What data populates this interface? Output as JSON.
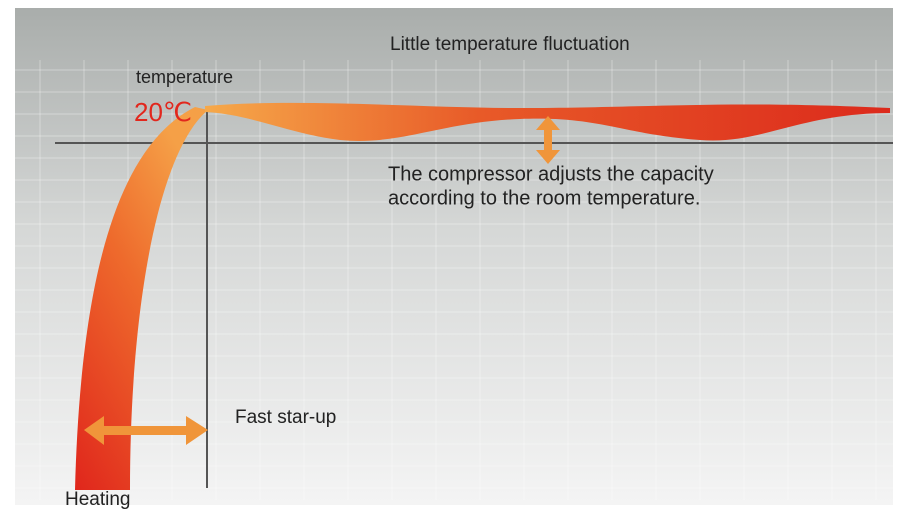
{
  "title": "Little temperature fluctuation",
  "y_label": "temperature",
  "set_point": "20℃",
  "compressor_note": [
    "The compressor adjusts the capacity",
    "according to the room temperature."
  ],
  "fast_startup": "Fast star-up",
  "heating": "Heating"
}
